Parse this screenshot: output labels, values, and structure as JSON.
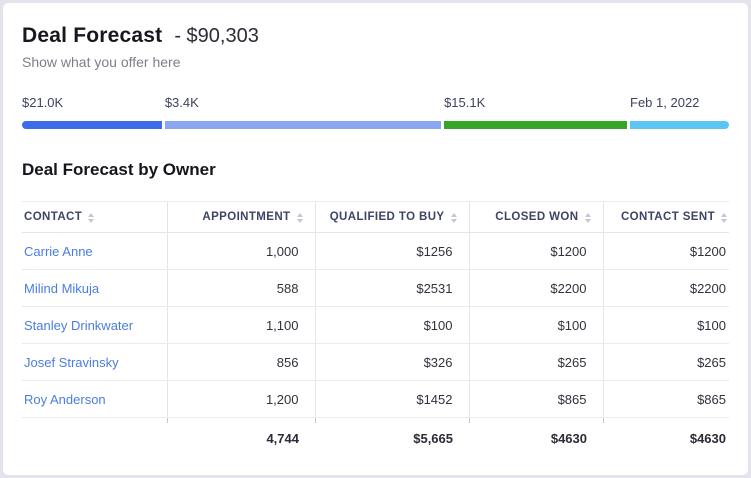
{
  "header": {
    "title": "Deal Forecast",
    "title_suffix": "- $90,303",
    "subtitle": "Show what you offer here"
  },
  "progress_bar": {
    "segments": [
      {
        "label": "$21.0K",
        "color": "#3c6ce6",
        "percent": 20.2
      },
      {
        "label": "$3.4K",
        "color": "#8ba7f1",
        "percent": 39.5
      },
      {
        "label": "$15.1K",
        "color": "#36a528",
        "percent": 26.3
      },
      {
        "label": "Feb 1, 2022",
        "color": "#5cc5f1",
        "percent": 14.0
      }
    ]
  },
  "table_section": {
    "heading": "Deal Forecast by Owner",
    "columns": [
      "CONTACT",
      "APPOINTMENT",
      "QUALIFIED TO BUY",
      "CLOSED WON",
      "CONTACT SENT"
    ],
    "rows": [
      {
        "contact": "Carrie Anne",
        "values": [
          "1,000",
          "$1256",
          "$1200",
          "$1200"
        ]
      },
      {
        "contact": "Milind Mikuja",
        "values": [
          "588",
          "$2531",
          "$2200",
          "$2200"
        ]
      },
      {
        "contact": "Stanley Drinkwater",
        "values": [
          "1,100",
          "$100",
          "$100",
          "$100"
        ]
      },
      {
        "contact": "Josef Stravinsky",
        "values": [
          "856",
          "$326",
          "$265",
          "$265"
        ]
      },
      {
        "contact": "Roy Anderson",
        "values": [
          "1,200",
          "$1452",
          "$865",
          "$865"
        ]
      }
    ],
    "totals": [
      "",
      "4,744",
      "$5,665",
      "$4630",
      "$4630"
    ]
  },
  "colors": {
    "link": "#4a7de0",
    "totals_rule": "#a8acb9"
  }
}
